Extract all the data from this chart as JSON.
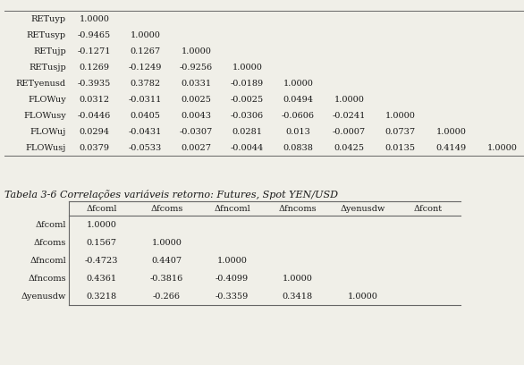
{
  "title": "Tabela 3-6 Correlações variáveis retorno: Futures, Spot YEN/USD",
  "top_table": {
    "row_labels": [
      "RETuyp",
      "RETusyp",
      "RETujp",
      "RETusjp",
      "RETyenusd",
      "FLOWuy",
      "FLOWusy",
      "FLOWuj",
      "FLOWusj"
    ],
    "data": [
      [
        "1.0000",
        "",
        "",
        "",
        "",
        "",
        "",
        "",
        ""
      ],
      [
        "-0.9465",
        "1.0000",
        "",
        "",
        "",
        "",
        "",
        "",
        ""
      ],
      [
        "-0.1271",
        "0.1267",
        "1.0000",
        "",
        "",
        "",
        "",
        "",
        ""
      ],
      [
        "0.1269",
        "-0.1249",
        "-0.9256",
        "1.0000",
        "",
        "",
        "",
        "",
        ""
      ],
      [
        "-0.3935",
        "0.3782",
        "0.0331",
        "-0.0189",
        "1.0000",
        "",
        "",
        "",
        ""
      ],
      [
        "0.0312",
        "-0.0311",
        "0.0025",
        "-0.0025",
        "0.0494",
        "1.0000",
        "",
        "",
        ""
      ],
      [
        "-0.0446",
        "0.0405",
        "0.0043",
        "-0.0306",
        "-0.0606",
        "-0.0241",
        "1.0000",
        "",
        ""
      ],
      [
        "0.0294",
        "-0.0431",
        "-0.0307",
        "0.0281",
        "0.013",
        "-0.0007",
        "0.0737",
        "1.0000",
        ""
      ],
      [
        "0.0379",
        "-0.0533",
        "0.0027",
        "-0.0044",
        "0.0838",
        "0.0425",
        "0.0135",
        "0.4149",
        "1.0000"
      ]
    ]
  },
  "bottom_table": {
    "col_headers": [
      "Δfcoml",
      "Δfcoms",
      "Δfncoml",
      "Δfncoms",
      "Δyenusdw",
      "Δfcont"
    ],
    "row_labels": [
      "Δfcoml",
      "Δfcoms",
      "Δfncoml",
      "Δfncoms",
      "Δyenusdw"
    ],
    "data": [
      [
        "1.0000",
        "",
        "",
        "",
        "",
        ""
      ],
      [
        "0.1567",
        "1.0000",
        "",
        "",
        "",
        ""
      ],
      [
        "-0.4723",
        "0.4407",
        "1.0000",
        "",
        "",
        ""
      ],
      [
        "0.4361",
        "-0.3816",
        "-0.4099",
        "1.0000",
        "",
        ""
      ],
      [
        "0.3218",
        "-0.266",
        "-0.3359",
        "0.3418",
        "1.0000",
        ""
      ]
    ]
  },
  "bg_color": "#f0efe8",
  "text_color": "#1a1a1a",
  "line_color": "#666666",
  "font_size": 7.0,
  "title_font_size": 8.0
}
